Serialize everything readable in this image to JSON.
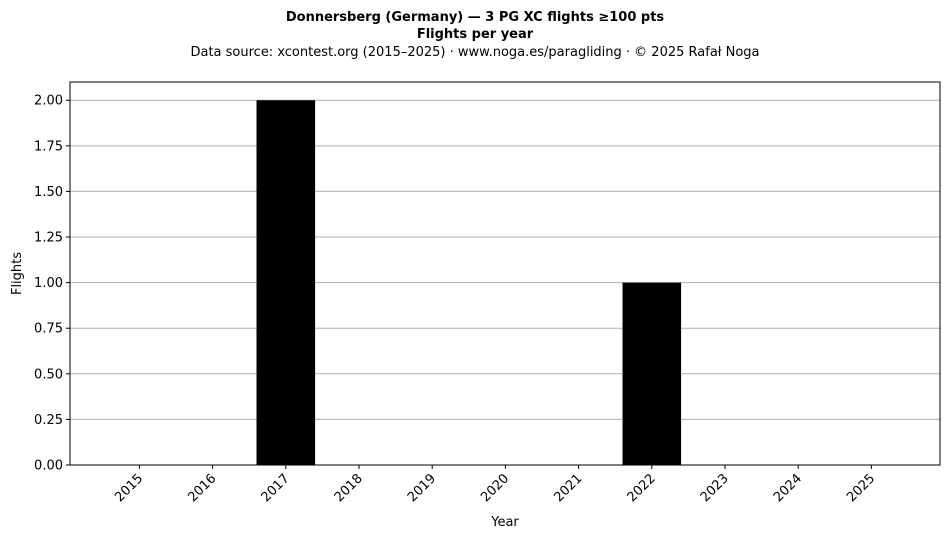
{
  "chart_data": {
    "type": "bar",
    "title": "Donnersberg (Germany)  —  3 PG XC flights ≥100 pts",
    "subtitle": "Flights per year",
    "source_line": "Data source: xcontest.org (2015–2025)  ·  www.noga.es/paragliding  ·  © 2025 Rafał Noga",
    "xlabel": "Year",
    "ylabel": "Flights",
    "categories": [
      "2015",
      "2016",
      "2017",
      "2018",
      "2019",
      "2020",
      "2021",
      "2022",
      "2023",
      "2024",
      "2025"
    ],
    "values": [
      0,
      0,
      2,
      0,
      0,
      0,
      0,
      1,
      0,
      0,
      0
    ],
    "ylim": [
      0,
      2.1
    ],
    "yticks": [
      "0.00",
      "0.25",
      "0.50",
      "0.75",
      "1.00",
      "1.25",
      "1.50",
      "1.75",
      "2.00"
    ],
    "grid": "horizontal",
    "bar_color": "#000000",
    "grid_color": "#b0b0b0"
  }
}
